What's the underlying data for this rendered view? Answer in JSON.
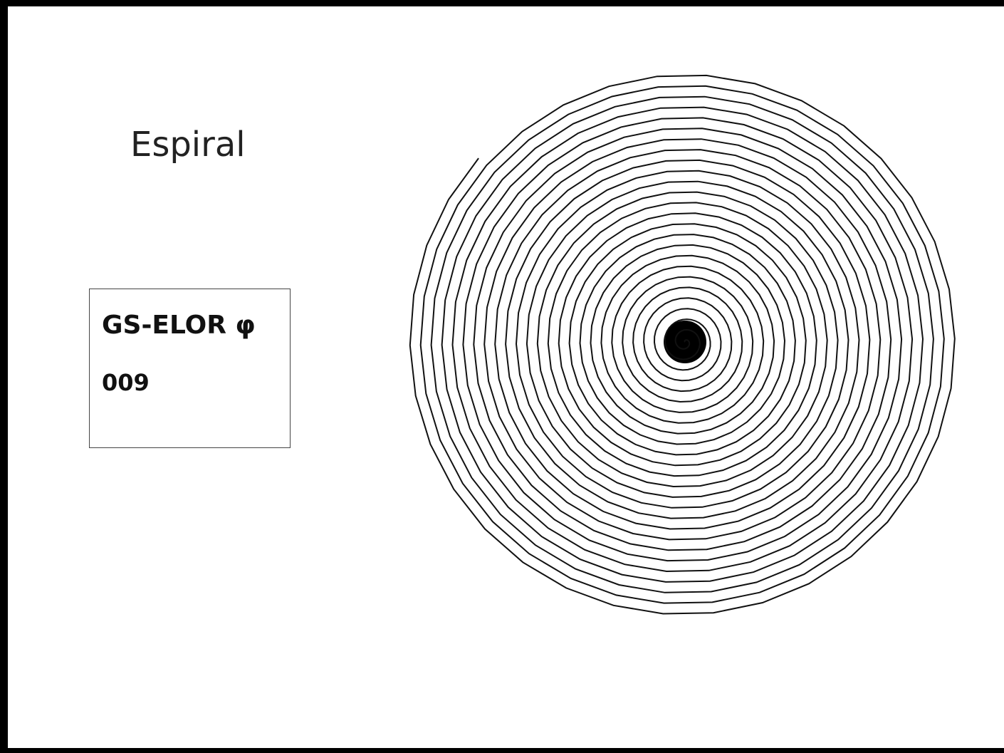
{
  "header": {
    "title": "Espiral"
  },
  "card": {
    "name": "GS-ELOR φ",
    "code": "009"
  }
}
